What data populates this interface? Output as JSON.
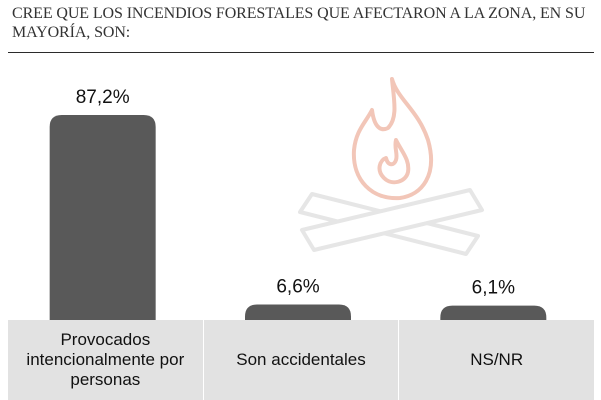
{
  "colors": {
    "bar": "#595959",
    "band": "#e2e2e2",
    "fire_icon": "#f2c6b8",
    "logs_icon": "#e6e6e6"
  },
  "chart_data": {
    "type": "bar",
    "title": "CREE QUE LOS INCENDIOS FORESTALES QUE AFECTARON A LA ZONA, EN SU MAYORÍA, SON:",
    "categories": [
      "Provocados intencionalmente por personas",
      "Son accidentales",
      "NS/NR"
    ],
    "values": [
      87.2,
      6.6,
      6.1
    ],
    "data_labels": [
      "87,2%",
      "6,6%",
      "6,1%"
    ],
    "ylim": [
      0,
      87.2
    ],
    "grid": false,
    "legend": "none"
  }
}
